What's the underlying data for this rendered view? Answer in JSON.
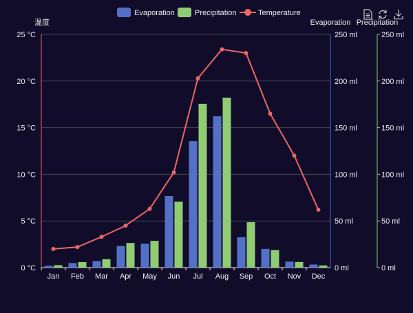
{
  "colors": {
    "background": "#100c2a",
    "evaporation": "#5470c6",
    "precipitation": "#91cc75",
    "temperature": "#ee6666",
    "axis_text": "#eeeeee",
    "grid_line": "#484753",
    "secondary_axis_line": "#5470c6",
    "tertiary_axis_line": "#91cc75"
  },
  "toolbox": {
    "icons": [
      "data-view-icon",
      "restore-icon",
      "save-as-image-icon"
    ]
  },
  "chart_data": {
    "type": "bar",
    "categories": [
      "Jan",
      "Feb",
      "Mar",
      "Apr",
      "May",
      "Jun",
      "Jul",
      "Aug",
      "Sep",
      "Oct",
      "Nov",
      "Dec"
    ],
    "series": [
      {
        "name": "Evaporation",
        "type": "bar",
        "axis": "Evaporation",
        "values": [
          2.0,
          4.9,
          7.0,
          23.2,
          25.6,
          76.7,
          135.6,
          162.2,
          32.6,
          20.0,
          6.4,
          3.3
        ]
      },
      {
        "name": "Precipitation",
        "type": "bar",
        "axis": "Precipitation",
        "values": [
          2.6,
          5.9,
          9.0,
          26.4,
          28.7,
          70.7,
          175.6,
          182.2,
          48.7,
          18.8,
          6.0,
          2.3
        ]
      },
      {
        "name": "Temperature",
        "type": "line",
        "axis": "温度",
        "values": [
          2.0,
          2.2,
          3.3,
          4.5,
          6.3,
          10.2,
          20.3,
          23.4,
          23.0,
          16.5,
          12.0,
          6.2
        ]
      }
    ],
    "y_axes": [
      {
        "name": "温度",
        "position": "left",
        "unit": "°C",
        "ylim": [
          0,
          25
        ],
        "ticks": [
          "0 °C",
          "5 °C",
          "10 °C",
          "15 °C",
          "20 °C",
          "25 °C"
        ]
      },
      {
        "name": "Evaporation",
        "position": "right",
        "unit": "ml",
        "ylim": [
          0,
          250
        ],
        "ticks": [
          "0 ml",
          "50 ml",
          "100 ml",
          "150 ml",
          "200 ml",
          "250 ml"
        ]
      },
      {
        "name": "Precipitation",
        "position": "right-offset",
        "unit": "ml",
        "ylim": [
          0,
          250
        ],
        "ticks": [
          "0 ml",
          "50 ml",
          "100 ml",
          "150 ml",
          "200 ml",
          "250 ml"
        ]
      }
    ],
    "legend": {
      "position": "top-center",
      "entries": [
        "Evaporation",
        "Precipitation",
        "Temperature"
      ]
    },
    "grid": true
  }
}
